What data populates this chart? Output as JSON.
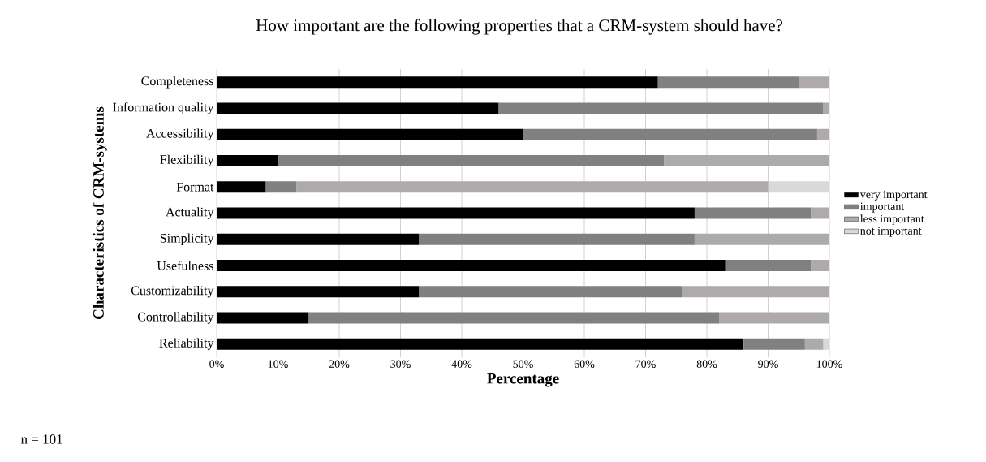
{
  "chart_data": {
    "type": "bar",
    "orientation": "horizontal",
    "stacked": true,
    "title": "How important are the following properties that a CRM-system should have?",
    "xlabel": "Percentage",
    "ylabel": "Characteristics of CRM-systems",
    "categories": [
      "Completeness",
      "Information quality",
      "Accessibility",
      "Flexibility",
      "Format",
      "Actuality",
      "Simplicity",
      "Usefulness",
      "Customizability",
      "Controllability",
      "Reliability"
    ],
    "series": [
      {
        "name": "very important",
        "color": "#000000",
        "values": [
          72,
          46,
          50,
          10,
          8,
          78,
          33,
          83,
          33,
          15,
          86
        ]
      },
      {
        "name": "important",
        "color": "#808080",
        "values": [
          23,
          53,
          48,
          63,
          5,
          19,
          45,
          14,
          43,
          67,
          10
        ]
      },
      {
        "name": "less important",
        "color": "#aeaaaa",
        "values": [
          5,
          1,
          2,
          27,
          77,
          3,
          22,
          3,
          24,
          18,
          3
        ]
      },
      {
        "name": "not important",
        "color": "#d9d9d9",
        "values": [
          0,
          0,
          0,
          0,
          10,
          0,
          0,
          0,
          0,
          0,
          1
        ]
      }
    ],
    "xlim": [
      0,
      100
    ],
    "xticks": [
      {
        "value": 0,
        "label": "0%"
      },
      {
        "value": 10,
        "label": "10%"
      },
      {
        "value": 20,
        "label": "20%"
      },
      {
        "value": 30,
        "label": "30%"
      },
      {
        "value": 40,
        "label": "40%"
      },
      {
        "value": 50,
        "label": "50%"
      },
      {
        "value": 60,
        "label": "60%"
      },
      {
        "value": 70,
        "label": "70%"
      },
      {
        "value": 80,
        "label": "80%"
      },
      {
        "value": 90,
        "label": "90%"
      },
      {
        "value": 100,
        "label": "100%"
      }
    ],
    "grid": "x",
    "legend": "right",
    "annotations": [
      "n = 101"
    ]
  }
}
